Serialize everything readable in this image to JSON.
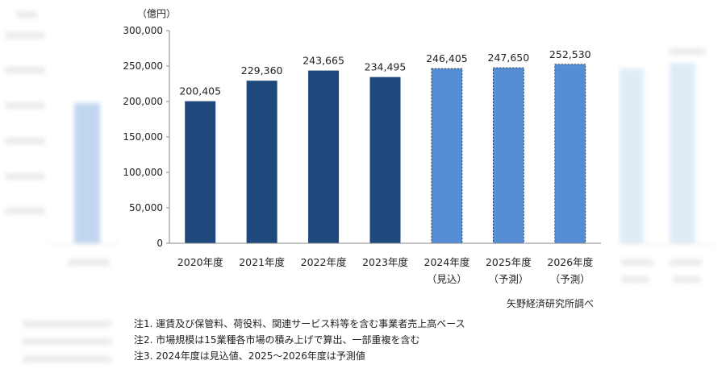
{
  "unit_label": "（億円）",
  "source": "矢野経済研究所調べ",
  "notes": [
    "注1.  運賃及び保管料、荷役料、関連サービス料等を含む事業者売上高ベース",
    "注2.  市場規模は15業種各市場の積み上げで算出、一部重複を含む",
    "注3.  2024年度は見込値、2025～2026年度は予測値"
  ],
  "colors": {
    "actual": "#1f497d",
    "forecast": "#558ed5",
    "backdrop_bar": "#8db3e2"
  },
  "chart_data": {
    "type": "bar",
    "categories": [
      "2020年度",
      "2021年度",
      "2022年度",
      "2023年度",
      "2024年度",
      "2025年度",
      "2026年度"
    ],
    "sublabels": [
      "",
      "",
      "",
      "",
      "（見込）",
      "（予測）",
      "（予測）"
    ],
    "values": [
      200405,
      229360,
      243665,
      234495,
      246405,
      247650,
      252530
    ],
    "value_labels": [
      "200,405",
      "229,360",
      "243,665",
      "234,495",
      "246,405",
      "247,650",
      "252,530"
    ],
    "bar_kind": [
      "actual",
      "actual",
      "actual",
      "actual",
      "forecast",
      "forecast",
      "forecast"
    ],
    "ylim": [
      0,
      300000
    ],
    "yticks": [
      0,
      50000,
      100000,
      150000,
      200000,
      250000,
      300000
    ],
    "ytick_labels": [
      "0",
      "50,000",
      "100,000",
      "150,000",
      "200,000",
      "250,000",
      "300,000"
    ],
    "grid": false
  }
}
